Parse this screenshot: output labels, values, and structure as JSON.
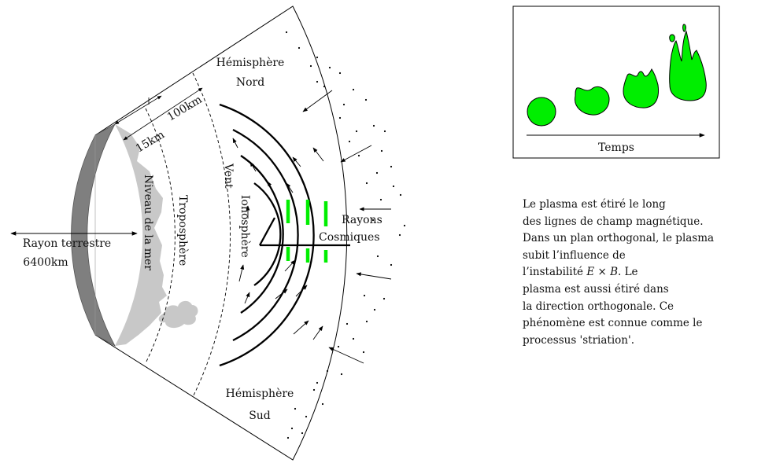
{
  "labels": {
    "hemi_north_1": "Hémisphère",
    "hemi_north_2": "Nord",
    "hemi_south_1": "Hémisphère",
    "hemi_south_2": "Sud",
    "dist_100": "100km",
    "dist_15": "15km",
    "sea_level": "Niveau de la mer",
    "troposphere": "Troposphère",
    "ionosphere": "Ionosphère",
    "wind": "Vent",
    "rays_1": "Rayons",
    "rays_2": "Cosmiques",
    "radius_1": "Rayon terrestre",
    "radius_2": "6400km",
    "time": "Temps"
  },
  "paragraph": {
    "line1": "Le plasma est étiré le long",
    "line2": "des lignes de champ magnétique.",
    "line3": "Dans un plan orthogonal, le plasma",
    "line4": "subit l’influence de",
    "line5_pre": "l’instabilité ",
    "line5_math": "E × B",
    "line5_post": ". Le",
    "line6": "plasma est aussi étiré dans",
    "line7": "la direction orthogonale. Ce",
    "line8": "phénomène est connue comme le",
    "line9": "processus 'striation'."
  },
  "colors": {
    "earth": "#7f7f7f",
    "cloud": "#c8c8c8",
    "plasma": "#00ee00",
    "line": "#000000"
  }
}
